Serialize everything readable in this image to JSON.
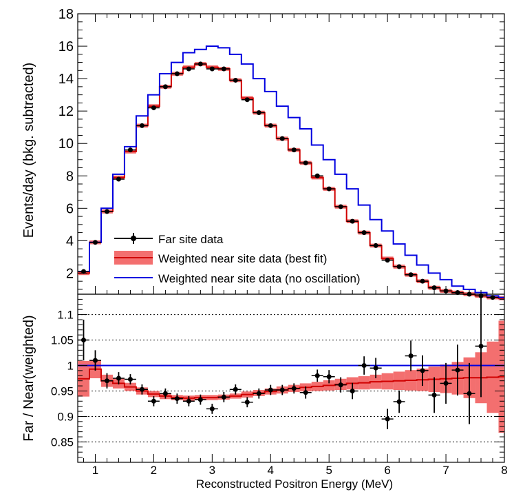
{
  "chart_data": [
    {
      "type": "line",
      "panel": "top",
      "ylabel": "Events/day (bkg. subtracted)",
      "ylim": [
        0.7,
        18
      ],
      "xlim": [
        0.7,
        8
      ],
      "yticks": [
        2,
        4,
        6,
        8,
        10,
        12,
        14,
        16,
        18
      ],
      "ytick_labels": [
        "2",
        "4",
        "6",
        "8",
        "10",
        "12",
        "14",
        "16",
        "18"
      ],
      "bin_edges": [
        0.7,
        0.9,
        1.1,
        1.3,
        1.5,
        1.7,
        1.9,
        2.1,
        2.3,
        2.5,
        2.7,
        2.9,
        3.1,
        3.3,
        3.5,
        3.7,
        3.9,
        4.1,
        4.3,
        4.5,
        4.7,
        4.9,
        5.1,
        5.3,
        5.5,
        5.7,
        5.9,
        6.1,
        6.3,
        6.5,
        6.7,
        6.9,
        7.1,
        7.3,
        7.5,
        7.7,
        7.9,
        8.0
      ],
      "series": [
        {
          "name": "Far site data",
          "x": [
            0.8,
            1.0,
            1.2,
            1.4,
            1.6,
            1.8,
            2.0,
            2.2,
            2.4,
            2.6,
            2.8,
            3.0,
            3.2,
            3.4,
            3.6,
            3.8,
            4.0,
            4.2,
            4.4,
            4.6,
            4.8,
            5.0,
            5.2,
            5.4,
            5.6,
            5.8,
            6.0,
            6.2,
            6.4,
            6.6,
            6.8,
            7.0,
            7.2,
            7.4,
            7.6,
            7.8
          ],
          "values": [
            2.1,
            3.9,
            5.8,
            7.8,
            9.6,
            11.1,
            12.2,
            13.5,
            14.3,
            14.6,
            14.9,
            14.6,
            14.6,
            13.9,
            12.7,
            11.9,
            11.1,
            10.3,
            9.6,
            8.8,
            8.0,
            7.2,
            6.1,
            5.2,
            4.5,
            3.7,
            2.8,
            2.4,
            1.9,
            1.5,
            1.1,
            0.9,
            0.8,
            0.7,
            0.6,
            0.5
          ],
          "errors": [
            0.1,
            0.1,
            0.1,
            0.1,
            0.1,
            0.1,
            0.1,
            0.1,
            0.1,
            0.1,
            0.1,
            0.1,
            0.1,
            0.1,
            0.1,
            0.1,
            0.1,
            0.1,
            0.1,
            0.1,
            0.1,
            0.1,
            0.1,
            0.1,
            0.1,
            0.1,
            0.1,
            0.1,
            0.1,
            0.1,
            0.1,
            0.1,
            0.1,
            0.1,
            0.1,
            0.1
          ]
        },
        {
          "name": "Weighted near site data (best fit)",
          "values": [
            2.0,
            3.9,
            5.8,
            7.9,
            9.5,
            11.1,
            12.3,
            13.5,
            14.3,
            14.7,
            14.9,
            14.7,
            14.6,
            13.9,
            12.8,
            11.9,
            11.1,
            10.3,
            9.6,
            8.8,
            7.9,
            7.2,
            6.1,
            5.2,
            4.5,
            3.7,
            2.9,
            2.4,
            1.9,
            1.5,
            1.1,
            0.9,
            0.8,
            0.7,
            0.6,
            0.5,
            0.45
          ]
        },
        {
          "name": "Weighted near site data (no oscillation)",
          "values": [
            2.1,
            3.9,
            6.0,
            8.1,
            9.8,
            11.7,
            13.0,
            14.3,
            15.0,
            15.6,
            15.8,
            16.0,
            15.9,
            15.5,
            14.9,
            14.0,
            13.2,
            12.3,
            11.6,
            10.9,
            9.9,
            9.0,
            8.1,
            7.2,
            6.2,
            5.3,
            4.6,
            3.8,
            3.1,
            2.5,
            2.0,
            1.6,
            1.2,
            1.0,
            0.8,
            0.6,
            0.5
          ]
        }
      ],
      "legend": {
        "placement": "bottom-left",
        "entries": [
          "Far site data",
          "Weighted near site data (best fit)",
          "Weighted near site data (no oscillation)"
        ]
      }
    },
    {
      "type": "scatter",
      "panel": "bottom",
      "xlabel": "Reconstructed Positron Energy (MeV)",
      "ylabel": "Far / Near(weighted)",
      "ylim": [
        0.81,
        1.14
      ],
      "xlim": [
        0.7,
        8
      ],
      "xticks": [
        1,
        2,
        3,
        4,
        5,
        6,
        7,
        8
      ],
      "xtick_labels": [
        "1",
        "2",
        "3",
        "4",
        "5",
        "6",
        "7",
        "8"
      ],
      "yticks": [
        0.85,
        0.9,
        0.95,
        1,
        1.05,
        1.1
      ],
      "ytick_labels": [
        "0.85",
        "0.9",
        "0.95",
        "1",
        "1.05",
        "1.1"
      ],
      "grid_y": [
        0.85,
        0.9,
        0.95,
        1.05,
        1.1
      ],
      "reference_line": 1.0,
      "series": [
        {
          "name": "Far site data",
          "x": [
            0.8,
            1.0,
            1.2,
            1.4,
            1.6,
            1.8,
            2.0,
            2.2,
            2.4,
            2.6,
            2.8,
            3.0,
            3.2,
            3.4,
            3.6,
            3.8,
            4.0,
            4.2,
            4.4,
            4.6,
            4.8,
            5.0,
            5.2,
            5.4,
            5.6,
            5.8,
            6.0,
            6.2,
            6.4,
            6.6,
            6.8,
            7.0,
            7.2,
            7.4,
            7.6
          ],
          "values": [
            1.05,
            1.01,
            0.97,
            0.975,
            0.973,
            0.953,
            0.93,
            0.945,
            0.935,
            0.93,
            0.933,
            0.915,
            0.938,
            0.953,
            0.928,
            0.945,
            0.952,
            0.952,
            0.955,
            0.947,
            0.98,
            0.978,
            0.962,
            0.95,
            1.0,
            0.995,
            0.895,
            0.929,
            1.019,
            0.99,
            0.942,
            0.965,
            0.991,
            0.945,
            1.038
          ],
          "errors": [
            0.04,
            0.02,
            0.015,
            0.012,
            0.01,
            0.01,
            0.01,
            0.01,
            0.01,
            0.01,
            0.01,
            0.01,
            0.01,
            0.01,
            0.01,
            0.01,
            0.01,
            0.01,
            0.01,
            0.012,
            0.012,
            0.013,
            0.015,
            0.016,
            0.018,
            0.02,
            0.02,
            0.022,
            0.03,
            0.03,
            0.035,
            0.04,
            0.05,
            0.06,
            0.1
          ]
        },
        {
          "name": "Weighted near site data (best fit)",
          "values": [
            0.974,
            0.993,
            0.97,
            0.965,
            0.958,
            0.95,
            0.944,
            0.94,
            0.937,
            0.936,
            0.937,
            0.937,
            0.938,
            0.94,
            0.943,
            0.946,
            0.949,
            0.952,
            0.955,
            0.957,
            0.959,
            0.961,
            0.963,
            0.965,
            0.966,
            0.968,
            0.969,
            0.97,
            0.971,
            0.972,
            0.973,
            0.974,
            0.975,
            0.976,
            0.976,
            0.977,
            0.978
          ],
          "band_halfwidth": [
            0.035,
            0.018,
            0.012,
            0.01,
            0.008,
            0.007,
            0.006,
            0.006,
            0.005,
            0.005,
            0.005,
            0.005,
            0.005,
            0.005,
            0.006,
            0.006,
            0.006,
            0.007,
            0.007,
            0.008,
            0.009,
            0.01,
            0.011,
            0.012,
            0.013,
            0.014,
            0.016,
            0.018,
            0.02,
            0.022,
            0.025,
            0.028,
            0.032,
            0.04,
            0.05,
            0.07,
            0.11
          ]
        },
        {
          "name": "Weighted near site data (no oscillation)",
          "values": [
            1.0
          ]
        }
      ]
    }
  ]
}
